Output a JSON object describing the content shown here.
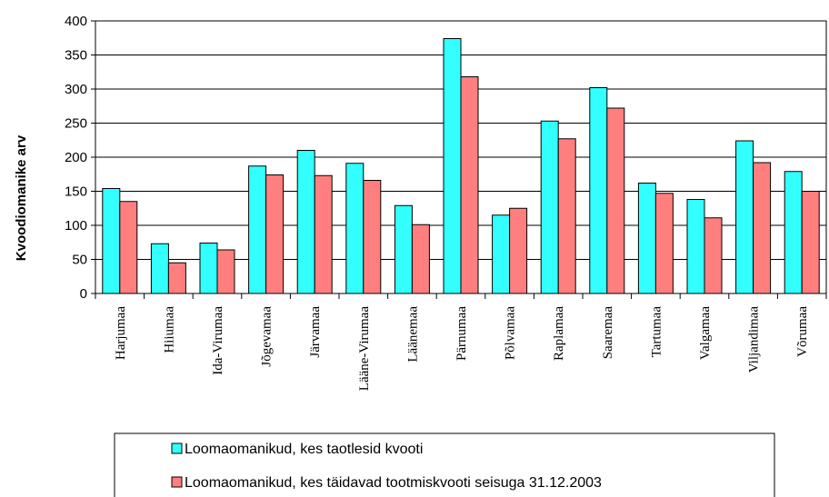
{
  "chart_data": {
    "type": "bar",
    "ylabel": "Kvoodiomanike arv",
    "xlabel": "",
    "ylim": [
      0,
      400
    ],
    "yticks": [
      0,
      50,
      100,
      150,
      200,
      250,
      300,
      350,
      400
    ],
    "grid": true,
    "legend_position": "bottom",
    "categories": [
      "Harjumaa",
      "Hiiumaa",
      "Ida-Virumaa",
      "Jõgevamaa",
      "Järvamaa",
      "Lääne-Virumaa",
      "Läänemaa",
      "Pärnumaa",
      "Põlvamaa",
      "Raplamaa",
      "Saaremaa",
      "Tartumaa",
      "Valgamaa",
      "Viljandimaa",
      "Võrumaa"
    ],
    "series": [
      {
        "name": "Loomaomanikud, kes taotlesid kvooti",
        "color": "#33ffff",
        "values": [
          154,
          73,
          74,
          187,
          210,
          191,
          129,
          374,
          115,
          253,
          302,
          162,
          138,
          224,
          179
        ]
      },
      {
        "name": "Loomaomanikud, kes täidavad tootmiskvooti seisuga 31.12.2003",
        "color": "#ff7f7f",
        "values": [
          135,
          45,
          64,
          174,
          173,
          166,
          101,
          318,
          125,
          227,
          272,
          147,
          111,
          192,
          150
        ]
      }
    ]
  }
}
